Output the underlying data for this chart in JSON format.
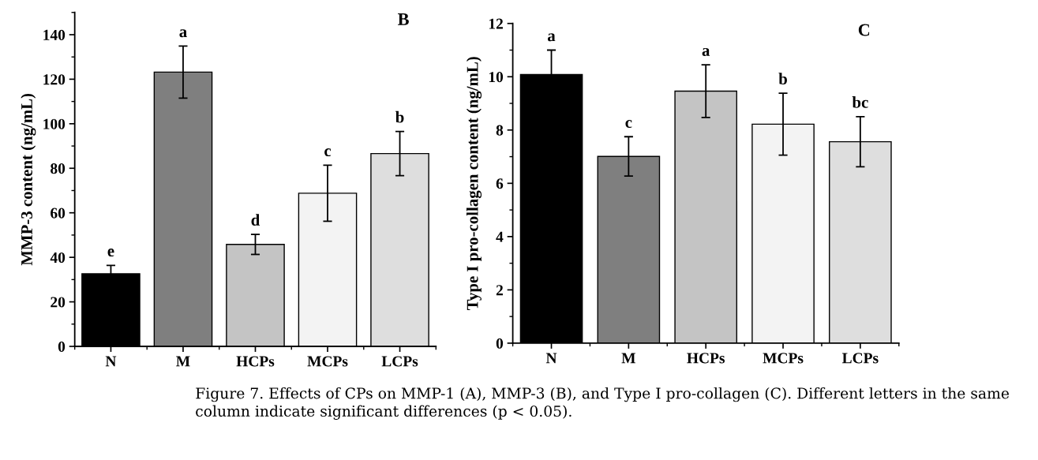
{
  "chart_data": [
    {
      "type": "bar",
      "title": "B",
      "ylabel": "MMP-3 content (ng/mL)",
      "categories": [
        "N",
        "M",
        "HCPs",
        "MCPs",
        "LCPs"
      ],
      "values": [
        32.6,
        123.2,
        45.8,
        68.8,
        86.6
      ],
      "errors": [
        3.8,
        11.7,
        4.5,
        12.6,
        9.9
      ],
      "colors": [
        "#000000",
        "#7f7f7f",
        "#c4c4c4",
        "#f3f3f3",
        "#dedede"
      ],
      "ylim": [
        0,
        150
      ],
      "yticks": [
        0,
        20,
        40,
        60,
        80,
        100,
        120,
        140
      ],
      "annotations": [
        {
          "text": "e",
          "x": "N",
          "y": 36.4
        },
        {
          "text": "a",
          "x": "M",
          "y": 134.9
        },
        {
          "text": "d",
          "x": "HCPs",
          "y": 50.3
        },
        {
          "text": "c",
          "x": "MCPs",
          "y": 81.4
        },
        {
          "text": "b",
          "x": "LCPs",
          "y": 96.5
        }
      ]
    },
    {
      "type": "bar",
      "title": "C",
      "ylabel": "Type I pro-collagen content (ng/mL)",
      "categories": [
        "N",
        "M",
        "HCPs",
        "MCPs",
        "LCPs"
      ],
      "values": [
        10.08,
        7.01,
        9.46,
        8.22,
        7.56
      ],
      "errors": [
        0.92,
        0.74,
        0.99,
        1.16,
        0.94
      ],
      "colors": [
        "#000000",
        "#7f7f7f",
        "#c4c4c4",
        "#f3f3f3",
        "#dedede"
      ],
      "ylim": [
        0,
        12
      ],
      "yticks": [
        0,
        2,
        4,
        6,
        8,
        10,
        12
      ],
      "annotations": [
        {
          "text": "a",
          "x": "N",
          "y": 11.0
        },
        {
          "text": "c",
          "x": "M",
          "y": 7.75
        },
        {
          "text": "a",
          "x": "HCPs",
          "y": 10.45
        },
        {
          "text": "b",
          "x": "MCPs",
          "y": 9.38
        },
        {
          "text": "bc",
          "x": "LCPs",
          "y": 8.5
        },
        "Figure 7. Effects of CPs on MMP-1 (A), MMP-3 (B), and Type I pro-collagen (C). Different letters in the same column indicate significant differences (p < 0.05)."
      ]
    }
  ]
}
